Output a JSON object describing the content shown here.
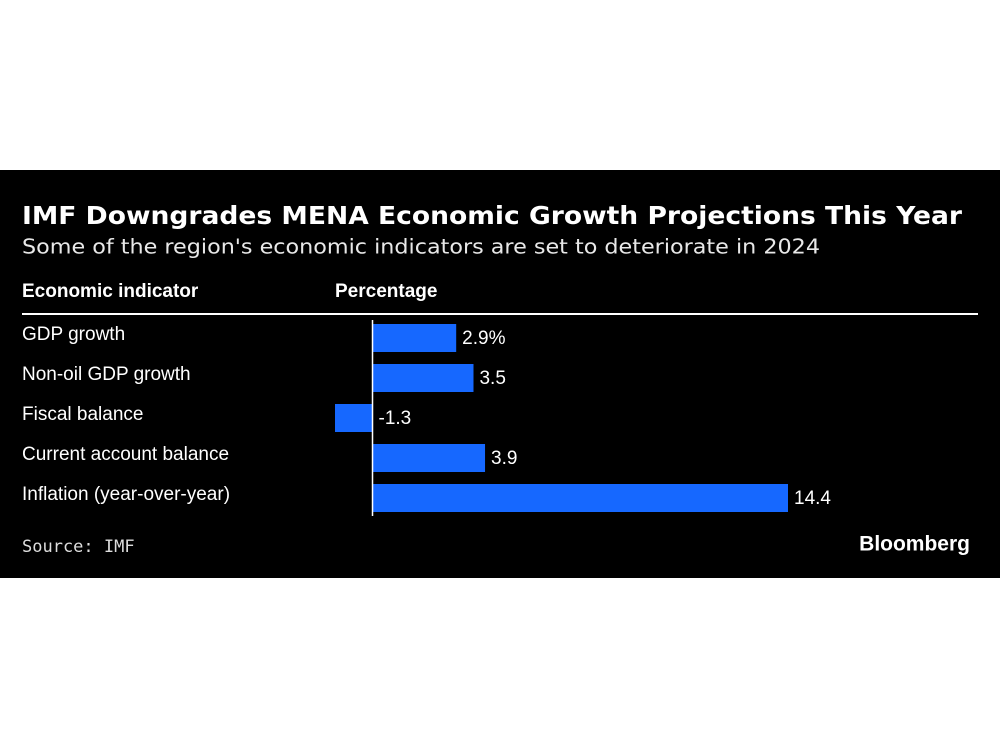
{
  "chart_data": {
    "type": "hbar",
    "title": "IMF Downgrades MENA Economic Growth Projections This Year",
    "subtitle": "Some of the region's economic indicators are set to deteriorate in 2024",
    "headers": [
      "Economic indicator",
      "Percentage"
    ],
    "categories": [
      "GDP growth",
      "Non-oil GDP growth",
      "Fiscal balance",
      "Current account balance",
      "Inflation (year-over-year)"
    ],
    "values": [
      2.9,
      3.5,
      -1.3,
      3.9,
      14.4
    ],
    "value_labels": [
      "2.9%",
      "3.5",
      "-1.3",
      "3.9",
      "14.4"
    ],
    "color": "#1668ff",
    "source": "Source: IMF",
    "brand": "Bloomberg"
  }
}
